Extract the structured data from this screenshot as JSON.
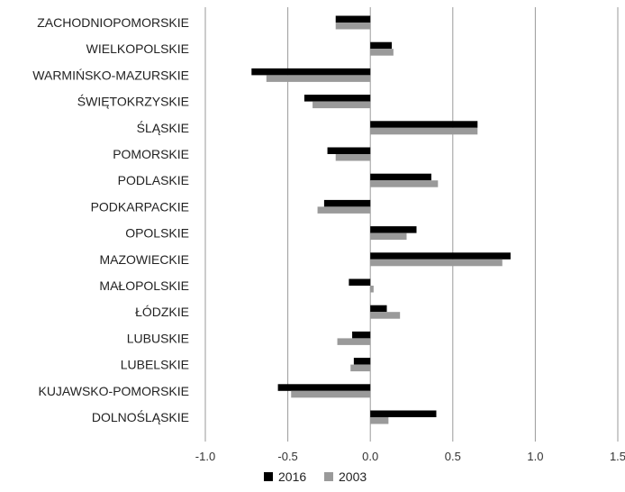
{
  "chart_data": {
    "type": "bar",
    "orientation": "horizontal",
    "categories": [
      "ZACHODNIOPOMORSKIE",
      "WIELKOPOLSKIE",
      "WARMIŃSKO-MAZURSKIE",
      "ŚWIĘTOKRZYSKIE",
      "ŚLĄSKIE",
      "POMORSKIE",
      "PODLASKIE",
      "PODKARPACKIE",
      "OPOLSKIE",
      "MAZOWIECKIE",
      "MAŁOPOLSKIE",
      "ŁÓDZKIE",
      "LUBUSKIE",
      "LUBELSKIE",
      "KUJAWSKO-POMORSKIE",
      "DOLNOŚLĄSKIE"
    ],
    "series": [
      {
        "name": "2016",
        "color": "#000000",
        "values": [
          -0.21,
          0.13,
          -0.72,
          -0.4,
          0.65,
          -0.26,
          0.37,
          -0.28,
          0.28,
          0.85,
          -0.13,
          0.1,
          -0.11,
          -0.1,
          -0.56,
          0.4
        ]
      },
      {
        "name": "2003",
        "color": "#9a9a9a",
        "values": [
          -0.21,
          0.14,
          -0.63,
          -0.35,
          0.65,
          -0.21,
          0.41,
          -0.32,
          0.22,
          0.8,
          0.02,
          0.18,
          -0.2,
          -0.12,
          -0.48,
          0.11
        ]
      }
    ],
    "x_ticks": [
      "-1.0",
      "-0.5",
      "0.0",
      "0.5",
      "1.0",
      "1.5"
    ],
    "xlim": [
      -1.0,
      1.5
    ],
    "grid": "vertical",
    "legend": "bottom-center",
    "title": "",
    "xlabel": "",
    "ylabel": ""
  }
}
